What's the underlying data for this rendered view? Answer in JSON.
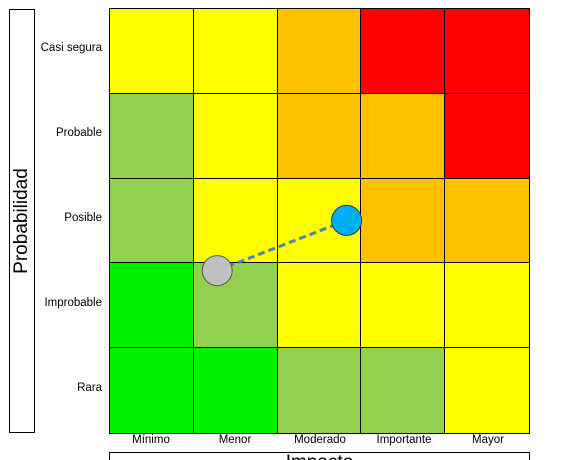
{
  "y_axis_title": "Probabilidad",
  "x_axis_title": "Impacto",
  "rows": [
    "Casi segura",
    "Probable",
    "Posible",
    "Improbable",
    "Rara"
  ],
  "columns": [
    "Mínimo",
    "Menor",
    "Moderado",
    "Importante",
    "Mayor"
  ],
  "colors": {
    "green": "#00f000",
    "light_green": "#92d050",
    "yellow": "#ffff00",
    "orange": "#ffc000",
    "red": "#ff0000",
    "marker_from": "#c0c0c0",
    "marker_to": "#00b0f0",
    "arrow": "#4f81bd"
  },
  "matrix": [
    [
      "yellow",
      "yellow",
      "orange",
      "red",
      "red"
    ],
    [
      "light_green",
      "yellow",
      "orange",
      "orange",
      "red"
    ],
    [
      "light_green",
      "yellow",
      "yellow",
      "orange",
      "orange"
    ],
    [
      "green",
      "light_green",
      "yellow",
      "yellow",
      "yellow"
    ],
    [
      "green",
      "green",
      "light_green",
      "light_green",
      "yellow"
    ]
  ],
  "markers": {
    "from": {
      "row": "Improbable",
      "column": "Menor"
    },
    "to": {
      "row": "Posible",
      "column": "Moderado"
    }
  }
}
